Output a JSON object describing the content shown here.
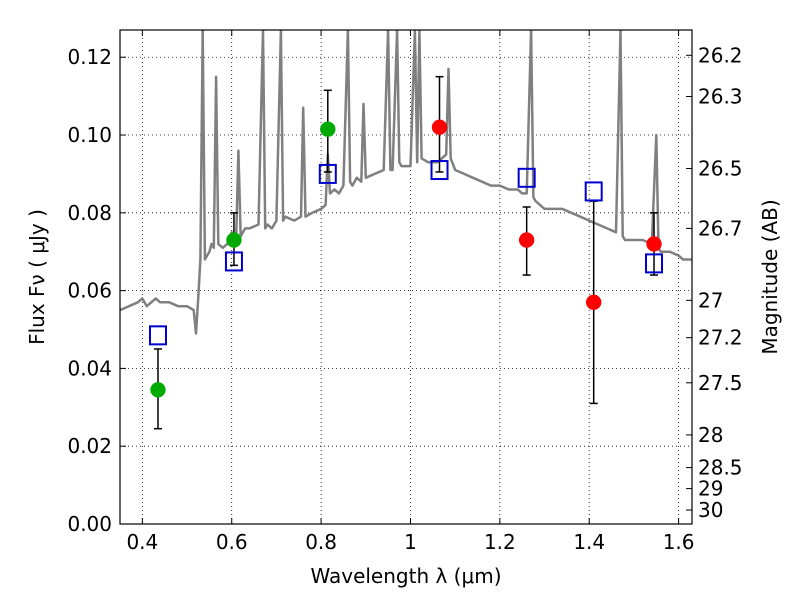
{
  "chart_data": {
    "type": "scatter",
    "xlabel": "Wavelength  λ (μm)",
    "ylabel": "Flux  Fν  ( μJy )",
    "y2label": "Magnitude (AB)",
    "xlim": [
      0.35,
      1.63
    ],
    "ylim": [
      0.0,
      0.127
    ],
    "grid": true,
    "x_ticks": [
      0.4,
      0.6,
      0.8,
      1.0,
      1.2,
      1.4,
      1.6
    ],
    "x_tick_labels": [
      "0.4",
      "0.6",
      "0.8",
      "1",
      "1.2",
      "1.4",
      "1.6"
    ],
    "y_ticks": [
      0.0,
      0.02,
      0.04,
      0.06,
      0.08,
      0.1,
      0.12
    ],
    "y_tick_labels": [
      "0.00",
      "0.02",
      "0.04",
      "0.06",
      "0.08",
      "0.10",
      "0.12"
    ],
    "y2_ticks": [
      {
        "label": "26.2",
        "flux": 0.1205
      },
      {
        "label": "26.3",
        "flux": 0.1099
      },
      {
        "label": "26.5",
        "flux": 0.0914
      },
      {
        "label": "26.7",
        "flux": 0.076
      },
      {
        "label": "27",
        "flux": 0.0575
      },
      {
        "label": "27.2",
        "flux": 0.0479
      },
      {
        "label": "27.5",
        "flux": 0.0363
      },
      {
        "label": "28",
        "flux": 0.0229
      },
      {
        "label": "28.5",
        "flux": 0.0145
      },
      {
        "label": "29",
        "flux": 0.0091
      },
      {
        "label": "30",
        "flux": 0.0036
      }
    ],
    "series": [
      {
        "color": "#808080",
        "kind": "line",
        "points": [
          [
            0.35,
            0.055
          ],
          [
            0.37,
            0.056
          ],
          [
            0.39,
            0.057
          ],
          [
            0.4,
            0.058
          ],
          [
            0.41,
            0.056
          ],
          [
            0.42,
            0.057
          ],
          [
            0.43,
            0.058
          ],
          [
            0.44,
            0.057
          ],
          [
            0.46,
            0.057
          ],
          [
            0.48,
            0.056
          ],
          [
            0.5,
            0.056
          ],
          [
            0.515,
            0.055
          ],
          [
            0.52,
            0.049
          ],
          [
            0.525,
            0.058
          ],
          [
            0.53,
            0.068
          ],
          [
            0.535,
            0.127
          ],
          [
            0.54,
            0.068
          ],
          [
            0.545,
            0.069
          ],
          [
            0.55,
            0.07
          ],
          [
            0.555,
            0.072
          ],
          [
            0.56,
            0.071
          ],
          [
            0.565,
            0.115
          ],
          [
            0.57,
            0.072
          ],
          [
            0.58,
            0.071
          ],
          [
            0.59,
            0.072
          ],
          [
            0.6,
            0.075
          ],
          [
            0.61,
            0.074
          ],
          [
            0.615,
            0.096
          ],
          [
            0.62,
            0.074
          ],
          [
            0.63,
            0.076
          ],
          [
            0.64,
            0.076
          ],
          [
            0.66,
            0.077
          ],
          [
            0.67,
            0.127
          ],
          [
            0.675,
            0.076
          ],
          [
            0.68,
            0.077
          ],
          [
            0.69,
            0.076
          ],
          [
            0.7,
            0.078
          ],
          [
            0.71,
            0.127
          ],
          [
            0.715,
            0.078
          ],
          [
            0.72,
            0.079
          ],
          [
            0.74,
            0.078
          ],
          [
            0.755,
            0.079
          ],
          [
            0.76,
            0.107
          ],
          [
            0.765,
            0.079
          ],
          [
            0.78,
            0.08
          ],
          [
            0.8,
            0.081
          ],
          [
            0.81,
            0.082
          ],
          [
            0.815,
            0.095
          ],
          [
            0.82,
            0.085
          ],
          [
            0.83,
            0.086
          ],
          [
            0.84,
            0.085
          ],
          [
            0.85,
            0.087
          ],
          [
            0.86,
            0.127
          ],
          [
            0.865,
            0.088
          ],
          [
            0.87,
            0.087
          ],
          [
            0.88,
            0.089
          ],
          [
            0.89,
            0.088
          ],
          [
            0.895,
            0.108
          ],
          [
            0.9,
            0.089
          ],
          [
            0.92,
            0.09
          ],
          [
            0.94,
            0.091
          ],
          [
            0.95,
            0.127
          ],
          [
            0.955,
            0.091
          ],
          [
            0.96,
            0.091
          ],
          [
            0.97,
            0.127
          ],
          [
            0.975,
            0.093
          ],
          [
            0.98,
            0.092
          ],
          [
            1.0,
            0.092
          ],
          [
            1.01,
            0.127
          ],
          [
            1.015,
            0.093
          ],
          [
            1.02,
            0.127
          ],
          [
            1.025,
            0.094
          ],
          [
            1.04,
            0.093
          ],
          [
            1.06,
            0.093
          ],
          [
            1.08,
            0.095
          ],
          [
            1.085,
            0.117
          ],
          [
            1.09,
            0.094
          ],
          [
            1.1,
            0.091
          ],
          [
            1.12,
            0.09
          ],
          [
            1.14,
            0.089
          ],
          [
            1.16,
            0.088
          ],
          [
            1.18,
            0.087
          ],
          [
            1.2,
            0.087
          ],
          [
            1.22,
            0.086
          ],
          [
            1.24,
            0.086
          ],
          [
            1.25,
            0.085
          ],
          [
            1.26,
            0.085
          ],
          [
            1.27,
            0.127
          ],
          [
            1.275,
            0.084
          ],
          [
            1.28,
            0.083
          ],
          [
            1.3,
            0.081
          ],
          [
            1.32,
            0.081
          ],
          [
            1.34,
            0.081
          ],
          [
            1.36,
            0.08
          ],
          [
            1.38,
            0.079
          ],
          [
            1.4,
            0.078
          ],
          [
            1.42,
            0.077
          ],
          [
            1.44,
            0.076
          ],
          [
            1.46,
            0.075
          ],
          [
            1.47,
            0.127
          ],
          [
            1.475,
            0.074
          ],
          [
            1.48,
            0.073
          ],
          [
            1.5,
            0.073
          ],
          [
            1.52,
            0.073
          ],
          [
            1.54,
            0.072
          ],
          [
            1.55,
            0.1
          ],
          [
            1.555,
            0.071
          ],
          [
            1.56,
            0.07
          ],
          [
            1.58,
            0.07
          ],
          [
            1.6,
            0.069
          ],
          [
            1.61,
            0.068
          ],
          [
            1.63,
            0.068
          ]
        ]
      },
      {
        "color": "#0000cc",
        "kind": "open-square",
        "points": [
          [
            0.435,
            0.0485
          ],
          [
            0.605,
            0.0675
          ],
          [
            0.815,
            0.09
          ],
          [
            1.065,
            0.091
          ],
          [
            1.26,
            0.089
          ],
          [
            1.41,
            0.0855
          ],
          [
            1.545,
            0.067
          ]
        ]
      },
      {
        "color": "#00aa00",
        "kind": "filled-circle",
        "points": [
          [
            0.435,
            0.0345,
            0.0245,
            0.045
          ],
          [
            0.605,
            0.073,
            0.0665,
            0.08
          ],
          [
            0.815,
            0.1015,
            0.0905,
            0.1115
          ]
        ]
      },
      {
        "color": "#ff0000",
        "kind": "filled-circle",
        "points": [
          [
            1.065,
            0.102,
            0.0905,
            0.115
          ],
          [
            1.26,
            0.073,
            0.064,
            0.0815
          ],
          [
            1.41,
            0.057,
            0.031,
            0.083
          ],
          [
            1.545,
            0.072,
            0.064,
            0.08
          ]
        ]
      }
    ]
  }
}
